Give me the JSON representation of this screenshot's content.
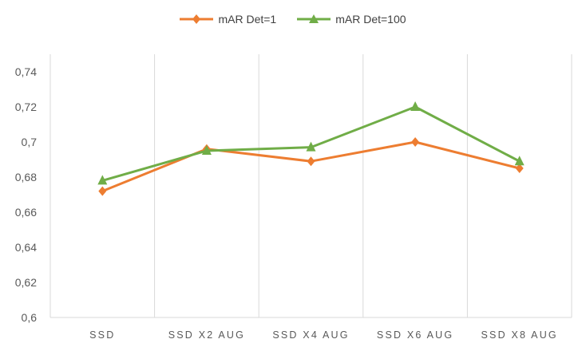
{
  "chart_data": {
    "type": "line",
    "categories": [
      "SSD",
      "SSD X2 AUG",
      "SSD X4 AUG",
      "SSD X6 AUG",
      "SSD X8 AUG"
    ],
    "series": [
      {
        "name": "mAR Det=1",
        "values": [
          0.672,
          0.696,
          0.689,
          0.7,
          0.685
        ],
        "color": "#ED7D31",
        "marker": "diamond"
      },
      {
        "name": "mAR Det=100",
        "values": [
          0.678,
          0.695,
          0.697,
          0.72,
          0.689
        ],
        "color": "#70AD47",
        "marker": "triangle"
      }
    ],
    "y_ticks": [
      "0,6",
      "0,62",
      "0,64",
      "0,66",
      "0,68",
      "0,7",
      "0,72",
      "0,74"
    ],
    "ylim": [
      0.6,
      0.75
    ],
    "grid": "vertical",
    "legend_position": "top-center",
    "title": "",
    "xlabel": "",
    "ylabel": ""
  }
}
